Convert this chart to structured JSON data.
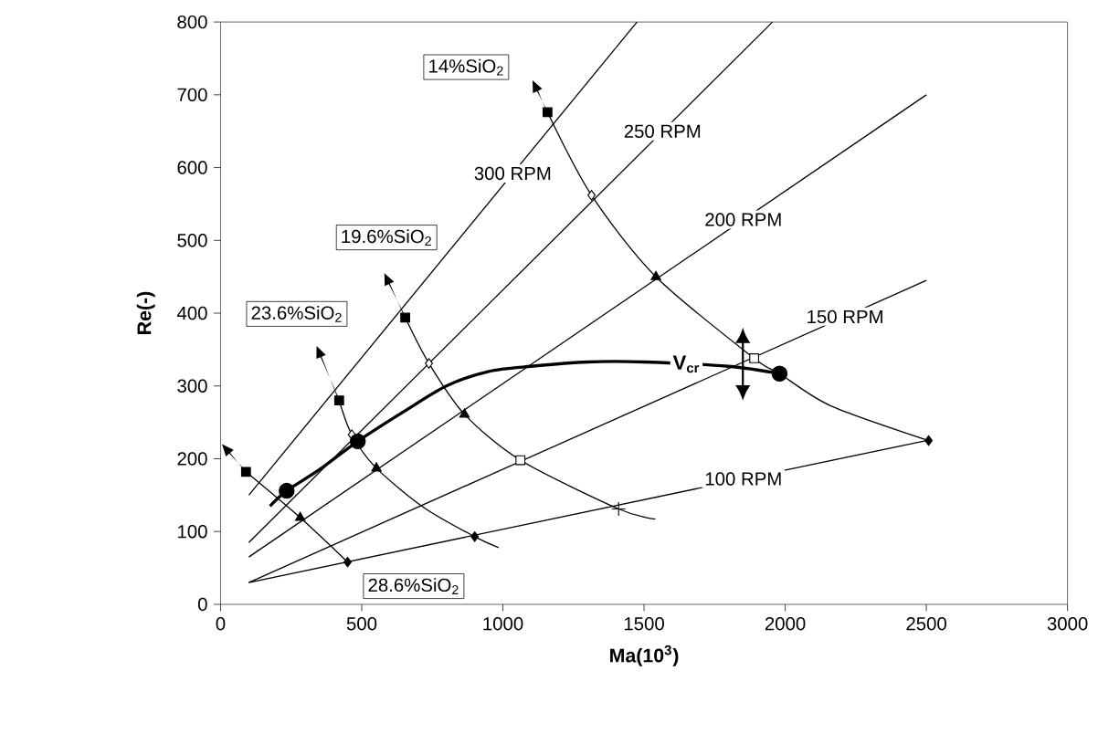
{
  "chart_data": {
    "type": "line",
    "xlabel": "Ma(10$^{3}$)",
    "ylabel": "Re(-)",
    "xlim": [
      0,
      3000
    ],
    "ylim": [
      0,
      800
    ],
    "xticks": [
      0,
      500,
      1000,
      1500,
      2000,
      2500,
      3000
    ],
    "yticks": [
      0,
      100,
      200,
      300,
      400,
      500,
      600,
      700,
      800
    ],
    "grid": false,
    "series": [
      {
        "name": "300 RPM",
        "color": "#000000",
        "x": [
          100,
          1475
        ],
        "values": [
          150,
          800
        ]
      },
      {
        "name": "250 RPM",
        "color": "#000000",
        "x": [
          100,
          1955
        ],
        "values": [
          85,
          800
        ]
      },
      {
        "name": "200 RPM",
        "color": "#000000",
        "x": [
          100,
          2500
        ],
        "values": [
          65,
          700
        ]
      },
      {
        "name": "150 RPM",
        "color": "#000000",
        "x": [
          100,
          2500
        ],
        "values": [
          30,
          445
        ]
      },
      {
        "name": "100 RPM",
        "color": "#000000",
        "x": [
          100,
          2500
        ],
        "values": [
          30,
          225
        ]
      },
      {
        "name": "14%SiO$_{2}$",
        "color": "#000000",
        "x": [
          1158,
          1314,
          1542,
          1890,
          1980,
          2160,
          2508
        ],
        "values": [
          676,
          562,
          450,
          338,
          317,
          273,
          225
        ]
      },
      {
        "name": "19.6%SiO$_{2}$",
        "color": "#000000",
        "x": [
          654,
          738,
          864,
          1062,
          1410,
          1540
        ],
        "values": [
          394,
          331,
          261,
          198,
          131,
          117
        ]
      },
      {
        "name": "23.6%SiO$_{2}$",
        "color": "#000000",
        "x": [
          420,
          465,
          552,
          720,
          900,
          985
        ],
        "values": [
          280,
          233,
          187,
          133,
          93,
          78
        ]
      },
      {
        "name": "28.6%SiO$_{2}$",
        "color": "#000000",
        "x": [
          90,
          282,
          450
        ],
        "values": [
          182,
          119,
          58
        ]
      },
      {
        "name": "V$_{cr}$",
        "color": "#000000",
        "x": [
          175,
          234,
          350,
          486,
          650,
          800,
          950,
          1100,
          1300,
          1500,
          1800,
          1980
        ],
        "values": [
          135,
          156,
          185,
          224,
          265,
          300,
          320,
          327,
          333,
          333,
          327,
          317
        ]
      },
      {
        "type": "scatter",
        "marker": "square",
        "color": "#000000",
        "x": [
          1158,
          654,
          420,
          90
        ],
        "values": [
          676,
          394,
          280,
          182
        ]
      },
      {
        "type": "scatter",
        "marker": "diamond",
        "color": "#ffffff",
        "x": [
          1314,
          738,
          465
        ],
        "values": [
          562,
          331,
          233
        ]
      },
      {
        "type": "scatter",
        "marker": "triangle",
        "color": "#000000",
        "x": [
          1542,
          864,
          552,
          282
        ],
        "values": [
          450,
          261,
          187,
          119
        ]
      },
      {
        "type": "scatter",
        "marker": "square",
        "color": "#ffffff",
        "x": [
          1890,
          1062
        ],
        "values": [
          338,
          198
        ]
      },
      {
        "type": "scatter",
        "marker": "diamond",
        "color": "#000000",
        "x": [
          2508,
          900,
          450
        ],
        "values": [
          225,
          93,
          58
        ]
      },
      {
        "type": "scatter",
        "marker": "cross",
        "color": "#000000",
        "x": [
          1410
        ],
        "values": [
          131
        ]
      },
      {
        "type": "scatter",
        "marker": "circle",
        "color": "#000000",
        "x": [
          234,
          486,
          1980
        ],
        "values": [
          156,
          224,
          317
        ]
      }
    ]
  }
}
